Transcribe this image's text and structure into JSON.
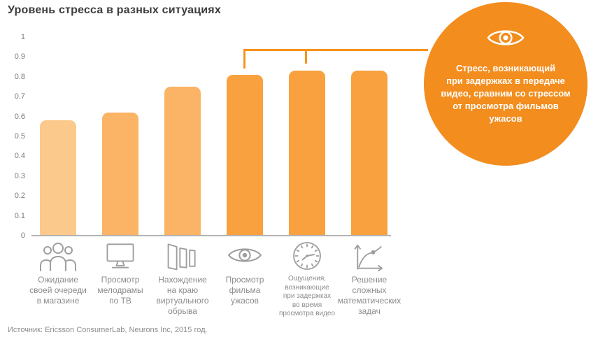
{
  "title": "Уровень стресса в разных ситуациях",
  "source": "Источник: Ericsson ConsumerLab, Neurons Inc, 2015 год.",
  "colors": {
    "bar_light": "#fcc98c",
    "bar_medium": "#fbb365",
    "bar_strong": "#f9a13e",
    "bracket": "#f7941e",
    "callout_bg": "#f28d1e",
    "axis_line": "#b3b3b3",
    "icon_gray": "#9e9e9e",
    "label_gray": "#8c8c8c",
    "tick_gray": "#7a7a7a",
    "title_color": "#3d3d3d"
  },
  "callout": {
    "icon": "eye-icon",
    "text": "Стресс, возникающий\nпри задержках  в передаче\nвидео, сравним со стрессом\nот просмотра фильмов\nужасов"
  },
  "chart_data": {
    "type": "bar",
    "title": "Уровень стресса в разных ситуациях",
    "xlabel": "",
    "ylabel": "",
    "ylim": [
      0,
      1
    ],
    "grid": false,
    "legend": false,
    "ytick_labels": [
      "0",
      "0.1",
      "0.2",
      "0.3",
      "0.4",
      "0.5",
      "0.6",
      "0.7",
      "0.8",
      "0.9",
      "1"
    ],
    "categories": [
      "Ожидание своей очереди в магазине",
      "Просмотр мелодрамы по ТВ",
      "Нахождение на краю виртуального обрыва",
      "Просмотр фильма ужасов",
      "Ощущения, возникающие при задержках во время просмотра видео",
      "Решение сложных математических задач"
    ],
    "values": [
      0.58,
      0.62,
      0.75,
      0.81,
      0.83,
      0.83
    ],
    "bars": [
      {
        "label": "Ожидание\nсвоей очереди\nв магазине",
        "value": 0.58,
        "color": "#fcc98c",
        "icon": "people-group-icon",
        "small_label": false
      },
      {
        "label": "Просмотр\nмелодрамы\nпо ТВ",
        "value": 0.62,
        "color": "#fbb365",
        "icon": "tv-icon",
        "small_label": false
      },
      {
        "label": "Нахождение\nна краю\nвиртуального\nобрыва",
        "value": 0.75,
        "color": "#fbb365",
        "icon": "panels-icon",
        "small_label": false
      },
      {
        "label": "Просмотр\nфильма\nужасов",
        "value": 0.81,
        "color": "#f9a13e",
        "icon": "eye-icon",
        "small_label": false
      },
      {
        "label": "Ощущения,\nвозникающие\nпри задержках\nво время\nпросмотра видео",
        "value": 0.83,
        "color": "#f9a13e",
        "icon": "clock-icon",
        "small_label": true
      },
      {
        "label": "Решение\nсложных\nматематических\nзадач",
        "value": 0.83,
        "color": "#f9a13e",
        "icon": "graph-icon",
        "small_label": false
      }
    ],
    "annotation": "Скобка соединяет столбцы 4 и 5 с выноской-кругом"
  }
}
